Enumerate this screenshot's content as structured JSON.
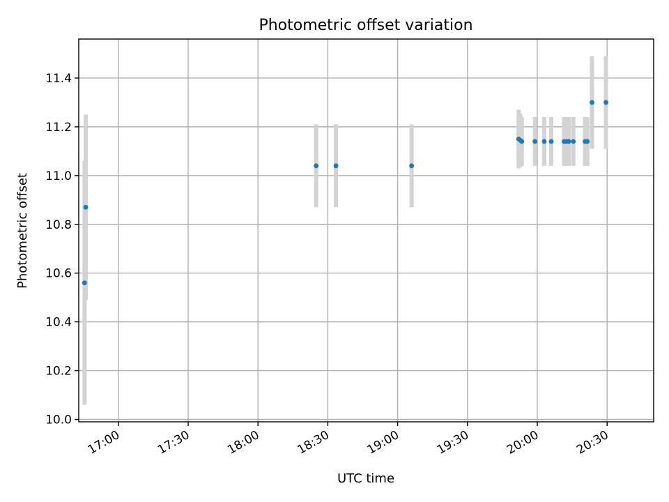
{
  "chart_data": {
    "type": "scatter",
    "title": "Photometric offset variation",
    "xlabel": "UTC time",
    "ylabel": "Photometric offset",
    "x_axis_type": "time",
    "xlim": [
      "16:43",
      "20:50"
    ],
    "ylim": [
      9.99,
      11.56
    ],
    "xticks": [
      "17:00",
      "17:30",
      "18:00",
      "18:30",
      "19:00",
      "19:30",
      "20:00",
      "20:30"
    ],
    "yticks": [
      "10.0",
      "10.2",
      "10.4",
      "10.6",
      "10.8",
      "11.0",
      "11.2",
      "11.4"
    ],
    "ytick_values": [
      10.0,
      10.2,
      10.4,
      10.6,
      10.8,
      11.0,
      11.2,
      11.4
    ],
    "grid": true,
    "marker_color": "#1f77b4",
    "errorbar_color": "#d3d3d3",
    "series": [
      {
        "points": [
          {
            "x": "16:45:30",
            "y": 10.56,
            "yerr": 0.5
          },
          {
            "x": "16:46:00",
            "y": 10.87,
            "yerr": 0.38
          },
          {
            "x": "18:25:00",
            "y": 11.04,
            "yerr": 0.17
          },
          {
            "x": "18:33:30",
            "y": 11.04,
            "yerr": 0.17
          },
          {
            "x": "19:06:00",
            "y": 11.04,
            "yerr": 0.17
          },
          {
            "x": "19:52:00",
            "y": 11.15,
            "yerr": 0.12
          },
          {
            "x": "19:52:40",
            "y": 11.145,
            "yerr": 0.11
          },
          {
            "x": "19:53:20",
            "y": 11.14,
            "yerr": 0.1
          },
          {
            "x": "19:59:00",
            "y": 11.14,
            "yerr": 0.1
          },
          {
            "x": "20:03:00",
            "y": 11.14,
            "yerr": 0.1
          },
          {
            "x": "20:06:00",
            "y": 11.14,
            "yerr": 0.1
          },
          {
            "x": "20:11:30",
            "y": 11.14,
            "yerr": 0.1
          },
          {
            "x": "20:12:30",
            "y": 11.14,
            "yerr": 0.1
          },
          {
            "x": "20:13:30",
            "y": 11.14,
            "yerr": 0.1
          },
          {
            "x": "20:15:30",
            "y": 11.14,
            "yerr": 0.1
          },
          {
            "x": "20:20:30",
            "y": 11.14,
            "yerr": 0.1
          },
          {
            "x": "20:21:30",
            "y": 11.14,
            "yerr": 0.1
          },
          {
            "x": "20:23:30",
            "y": 11.3,
            "yerr": 0.19
          },
          {
            "x": "20:29:30",
            "y": 11.3,
            "yerr": 0.19
          }
        ]
      }
    ]
  }
}
